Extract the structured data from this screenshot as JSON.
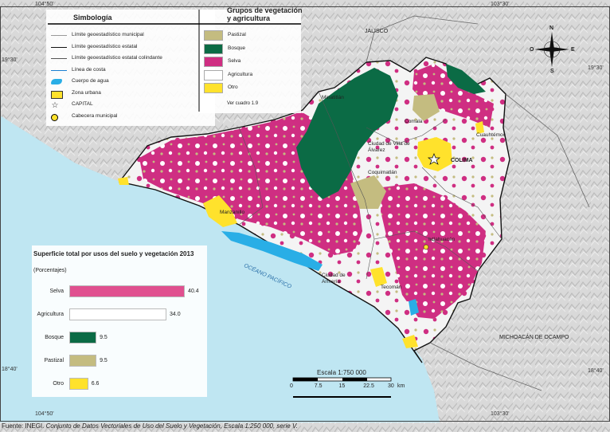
{
  "coordinates": {
    "top_left": "104°50'",
    "top_right": "103°30'",
    "bottom_left": "104°50'",
    "bottom_right": "103°30'",
    "left_upper": "19°30'",
    "left_lower": "18°40'",
    "right_upper": "19°30'",
    "right_lower": "18°40'"
  },
  "symbology": {
    "title": "Simbología",
    "items": [
      {
        "label": "Límite geoestadístico municipal",
        "symbol": "line-gray"
      },
      {
        "label": "Límite geoestadístico estatal",
        "symbol": "line-black"
      },
      {
        "label": "Límite geoestadístico estatal colindante",
        "symbol": "line-dark"
      },
      {
        "label": "Línea de costa",
        "symbol": "line-blue"
      },
      {
        "label": "Cuerpo de agua",
        "symbol": "water"
      },
      {
        "label": "Zona urbana",
        "symbol": "urban"
      },
      {
        "label": "CAPITAL",
        "symbol": "star"
      },
      {
        "label": "Cabecera municipal",
        "symbol": "dot"
      }
    ]
  },
  "vegetation_legend": {
    "title": "Grupos de vegetación y agricultura",
    "items": [
      {
        "label": "Pastizal",
        "color": "#c4bc80"
      },
      {
        "label": "Bosque",
        "color": "#0b6b45"
      },
      {
        "label": "Selva",
        "color": "#cf2e82"
      },
      {
        "label": "Agricultura",
        "color": "#ffffff"
      },
      {
        "label": "Otro",
        "color": "#ffe22c"
      }
    ],
    "note": "Ver cuadro 1.9"
  },
  "places": {
    "jalisco": "JALISCO",
    "michoacan": "MICHOACÁN DE OCAMPO",
    "ocean": "OCÉANO PACÍFICO",
    "minatitlan": "Minatitlán",
    "comala": "Comala",
    "villa_alvarez": "Ciudad de Villa de Álvarez",
    "colima": "COLIMA",
    "cuauhtemoc": "Cuauhtémoc",
    "coquimatlan": "Coquimatlán",
    "manzanillo": "Manzanillo",
    "ixtlahuacan": "Ixtlahuacán",
    "armeria": "Ciudad de Armería",
    "tecoman": "Tecomán"
  },
  "compass": {
    "n": "N",
    "s": "S",
    "e": "E",
    "o": "O"
  },
  "scale": {
    "label": "Escala 1:750 000",
    "ticks": [
      "0",
      "7.5",
      "15",
      "22.5",
      "30"
    ],
    "unit": "km"
  },
  "chart_data": {
    "type": "bar",
    "title": "Superficie total por usos del suelo y vegetación 2013",
    "subtitle": "(Porcentajes)",
    "categories": [
      "Selva",
      "Agricultura",
      "Bosque",
      "Pastizal",
      "Otro"
    ],
    "values": [
      40.4,
      34.0,
      9.5,
      9.5,
      6.6
    ],
    "value_labels": [
      "40.4",
      "34.0",
      "9.5",
      "9.5",
      "6.6"
    ],
    "colors": [
      "#e0508f",
      "#ffffff",
      "#0b6b45",
      "#c4bc80",
      "#ffe22c"
    ],
    "orientation": "horizontal",
    "xlim": [
      0,
      40.4
    ]
  },
  "source": {
    "prefix": "Fuente: INEGI.",
    "text": "Conjunto de Datos Vectoriales de Uso del Suelo y Vegetación, Escala 1:250 000, serie V."
  }
}
